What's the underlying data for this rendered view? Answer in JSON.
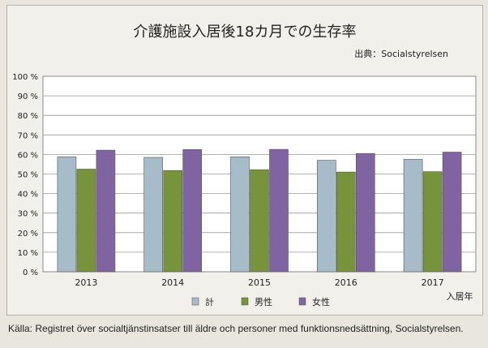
{
  "title": "介護施設入居後18カ月での生存率",
  "source": "出典：Socialstyrelsen",
  "caption": "Källa: Registret över socialtjänstinsatser till äldre och personer med funktionsnedsättning, Socialstyrelsen.",
  "chart_data": {
    "type": "bar",
    "categories": [
      "2013",
      "2014",
      "2015",
      "2016",
      "2017"
    ],
    "series": [
      {
        "name": "計",
        "color": "#a6bcc8",
        "values": [
          58.8,
          58.5,
          58.8,
          57.0,
          57.5
        ]
      },
      {
        "name": "男性",
        "color": "#77933c",
        "values": [
          52.5,
          51.8,
          52.2,
          51.0,
          51.2
        ]
      },
      {
        "name": "女性",
        "color": "#8064a2",
        "values": [
          62.2,
          62.5,
          62.6,
          60.5,
          61.2
        ]
      }
    ],
    "yticks": [
      "0 %",
      "10 %",
      "20 %",
      "30 %",
      "40 %",
      "50 %",
      "60 %",
      "70 %",
      "80 %",
      "90 %",
      "100 %"
    ],
    "ylim": [
      0,
      100
    ],
    "xlabel": "入居年",
    "ylabel": "",
    "grid": true,
    "legend": "bottom-center"
  }
}
